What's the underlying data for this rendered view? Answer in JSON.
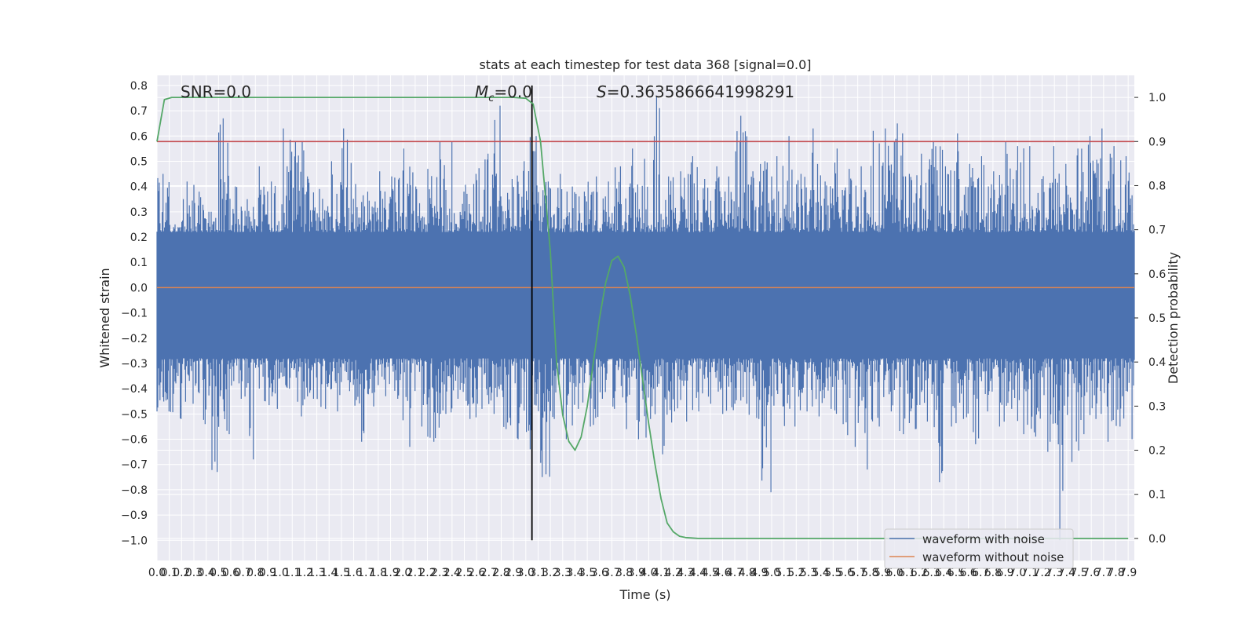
{
  "chart_data": {
    "type": "line",
    "title": "stats at each timestep for test data 368 [signal=0.0]",
    "xlabel": "Time (s)",
    "ylabel": "Whitened strain",
    "y2label": "Detection probability",
    "xlim": [
      0.0,
      7.95
    ],
    "ylim": [
      -1.08,
      0.84
    ],
    "y2lim": [
      -0.05,
      1.05
    ],
    "x_ticks": [
      0.0,
      0.1,
      0.2,
      0.3,
      0.4,
      0.5,
      0.6,
      0.7,
      0.8,
      0.9,
      1.0,
      1.1,
      1.2,
      1.3,
      1.4,
      1.5,
      1.6,
      1.7,
      1.8,
      1.9,
      2.0,
      2.1,
      2.2,
      2.3,
      2.4,
      2.5,
      2.6,
      2.7,
      2.8,
      2.9,
      3.0,
      3.1,
      3.2,
      3.3,
      3.4,
      3.5,
      3.6,
      3.7,
      3.8,
      3.9,
      4.0,
      4.1,
      4.2,
      4.3,
      4.4,
      4.5,
      4.6,
      4.7,
      4.8,
      4.9,
      5.0,
      5.1,
      5.2,
      5.3,
      5.4,
      5.5,
      5.6,
      5.7,
      5.8,
      5.9,
      6.0,
      6.1,
      6.2,
      6.3,
      6.4,
      6.5,
      6.6,
      6.7,
      6.8,
      6.9,
      7.0,
      7.1,
      7.2,
      7.3,
      7.4,
      7.5,
      7.6,
      7.7,
      7.8,
      7.9
    ],
    "y_ticks": [
      0.8,
      0.7,
      0.6,
      0.5,
      0.4,
      0.3,
      0.2,
      0.1,
      0.0,
      -0.1,
      -0.2,
      -0.3,
      -0.4,
      -0.5,
      -0.6,
      -0.7,
      -0.8,
      -0.9,
      -1.0
    ],
    "y2_ticks": [
      1.0,
      0.9,
      0.8,
      0.7,
      0.6,
      0.5,
      0.4,
      0.3,
      0.2,
      0.1,
      0.0
    ],
    "annotations": {
      "snr": "SNR=0.0",
      "mc": "=0.0",
      "mc_symbol": "M",
      "mc_sub": "c",
      "s": "=0.3635866641998291",
      "s_symbol": "S"
    },
    "threshold_line": {
      "value": 0.9,
      "axis": "right",
      "color": "#c44e52"
    },
    "marker_line": {
      "x": 3.05,
      "y_from": -1.0,
      "y_to": 0.8,
      "color": "#000000"
    },
    "noise_envelope": {
      "x_range": [
        0.0,
        7.95
      ],
      "core_low": -0.28,
      "core_high": 0.22,
      "peak_high": [
        0.45,
        0.25,
        0.42,
        0.38,
        0.3,
        0.67,
        0.4,
        0.35,
        0.48,
        0.42,
        0.63,
        0.58,
        0.44,
        0.39,
        0.5,
        0.63,
        0.41,
        0.38,
        0.46,
        0.44,
        0.55,
        0.4,
        0.47,
        0.58,
        0.38,
        0.45,
        0.53,
        0.72,
        0.43,
        0.5,
        0.6,
        0.42,
        0.45,
        0.4,
        0.38,
        0.44,
        0.42,
        0.48,
        0.55,
        0.51,
        0.76,
        0.44,
        0.46,
        0.52,
        0.43,
        0.48,
        0.44,
        0.68,
        0.46,
        0.5,
        0.52,
        0.6,
        0.45,
        0.63,
        0.42,
        0.55,
        0.47,
        0.48,
        0.62,
        0.63,
        0.65,
        0.45,
        0.53,
        0.58,
        0.48,
        0.61,
        0.49,
        0.52,
        0.46,
        0.58,
        0.56,
        0.43,
        0.56,
        0.49,
        0.55,
        0.6,
        0.63,
        0.56,
        0.52,
        0.48
      ],
      "peak_low": [
        -0.49,
        -0.52,
        -0.46,
        -0.54,
        -0.73,
        -0.58,
        -0.44,
        -0.68,
        -0.45,
        -0.48,
        -0.4,
        -0.51,
        -0.44,
        -0.48,
        -0.49,
        -0.41,
        -0.61,
        -0.47,
        -0.43,
        -0.44,
        -0.63,
        -0.55,
        -0.61,
        -0.5,
        -0.44,
        -0.52,
        -0.48,
        -0.5,
        -0.56,
        -0.6,
        -0.64,
        -0.75,
        -0.52,
        -0.6,
        -0.48,
        -0.55,
        -0.44,
        -0.48,
        -0.56,
        -0.6,
        -0.52,
        -0.66,
        -0.49,
        -0.53,
        -0.49,
        -0.46,
        -0.5,
        -0.46,
        -0.52,
        -0.81,
        -0.47,
        -0.55,
        -0.49,
        -0.51,
        -0.48,
        -0.54,
        -0.63,
        -0.72,
        -0.55,
        -0.49,
        -0.58,
        -0.56,
        -0.53,
        -0.77,
        -0.55,
        -0.52,
        -0.62,
        -0.49,
        -0.55,
        -0.48,
        -0.58,
        -0.59,
        -0.65,
        -1.0,
        -0.69,
        -0.58,
        -0.52,
        -0.61,
        -0.55,
        -0.6
      ],
      "color": "#4c72b0"
    },
    "series": [
      {
        "name": "waveform with noise",
        "color": "#4c72b0",
        "axis": "left"
      },
      {
        "name": "waveform without noise",
        "color": "#dd8452",
        "axis": "left",
        "x": [
          0.0,
          7.95
        ],
        "values": [
          0.0,
          0.0
        ]
      },
      {
        "color": "#55a868",
        "axis": "right",
        "x": [
          0.0,
          0.06,
          0.12,
          0.25,
          0.5,
          1.0,
          1.5,
          2.0,
          2.5,
          2.75,
          2.9,
          3.0,
          3.06,
          3.12,
          3.2,
          3.25,
          3.3,
          3.35,
          3.4,
          3.45,
          3.5,
          3.55,
          3.6,
          3.65,
          3.7,
          3.75,
          3.8,
          3.85,
          3.9,
          3.95,
          4.0,
          4.05,
          4.1,
          4.15,
          4.2,
          4.25,
          4.3,
          4.35,
          4.4,
          4.45,
          4.5,
          4.6,
          4.7,
          5.0,
          6.0,
          7.0,
          7.9
        ],
        "values": [
          0.9,
          0.995,
          1.0,
          1.0,
          1.0,
          1.0,
          1.0,
          1.0,
          1.0,
          1.0,
          1.0,
          0.998,
          0.985,
          0.9,
          0.65,
          0.4,
          0.28,
          0.22,
          0.2,
          0.23,
          0.3,
          0.4,
          0.5,
          0.58,
          0.63,
          0.64,
          0.615,
          0.55,
          0.46,
          0.36,
          0.26,
          0.17,
          0.09,
          0.035,
          0.015,
          0.005,
          0.002,
          0.001,
          0.0,
          0.0,
          0.0,
          0.0,
          0.0,
          0.0,
          0.0,
          0.0,
          0.0
        ]
      }
    ],
    "legend_placement": "lower-right",
    "grid": true,
    "colors": {
      "plot_bg": "#eaeaf2",
      "grid": "#ffffff",
      "axis_text": "#262626"
    }
  }
}
